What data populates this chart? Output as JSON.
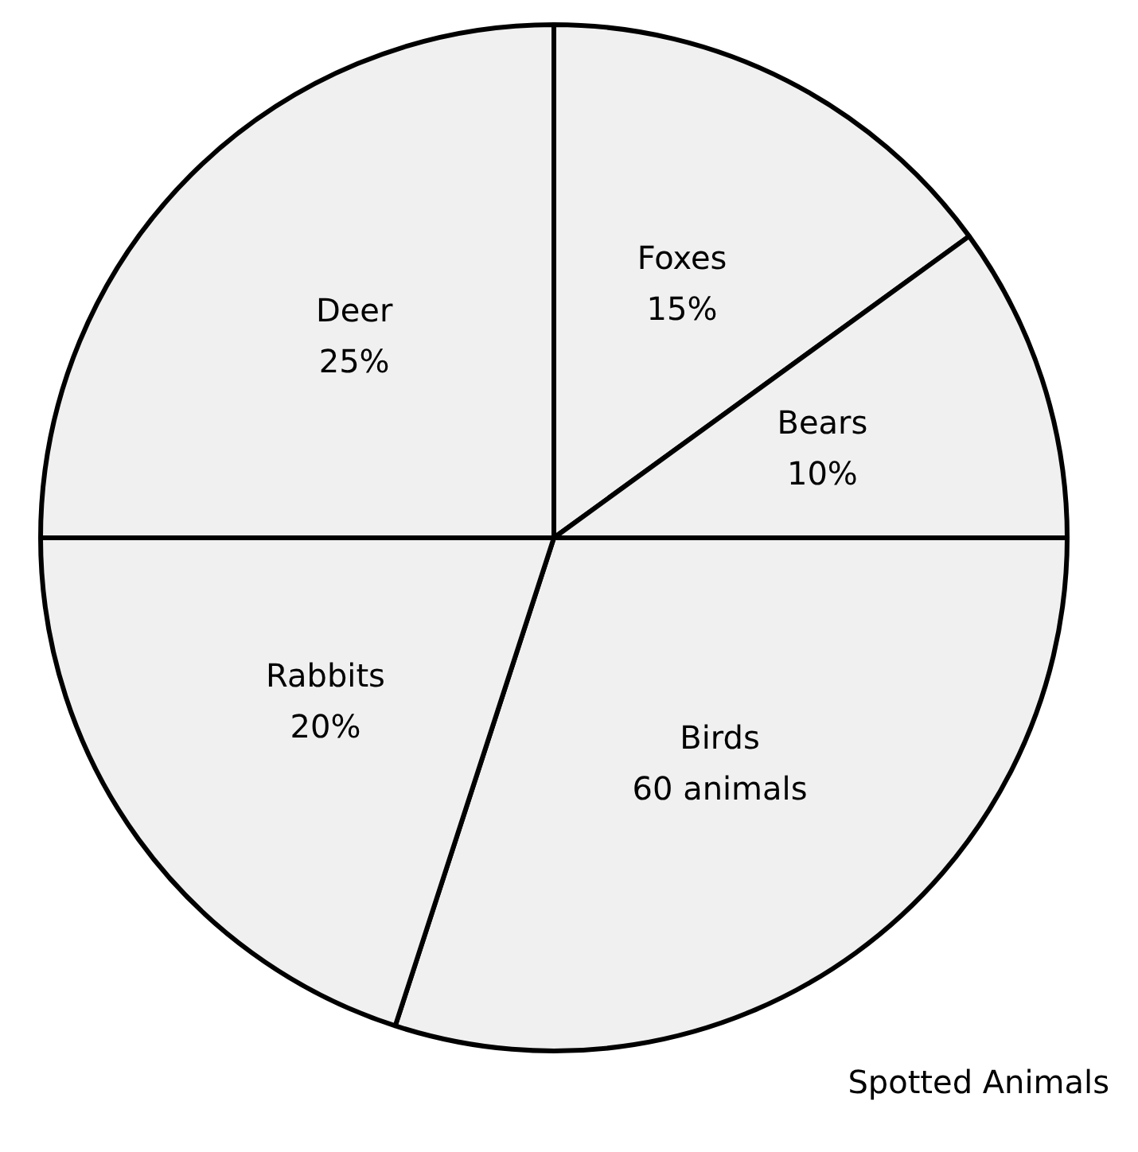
{
  "chart_data": {
    "type": "pie",
    "title": "Spotted Animals",
    "categories": [
      "Foxes",
      "Bears",
      "Birds",
      "Rabbits",
      "Deer"
    ],
    "values": [
      15,
      10,
      30,
      20,
      25
    ],
    "value_labels": [
      "15%",
      "10%",
      null,
      "20%",
      "25%"
    ],
    "annotations": [
      {
        "text": "60 animals",
        "x": "Birds"
      }
    ],
    "colors": [
      "#f0f0f0",
      "#f0f0f0",
      "#f0f0f0",
      "#f0f0f0",
      "#f0f0f0"
    ],
    "legend": false
  }
}
